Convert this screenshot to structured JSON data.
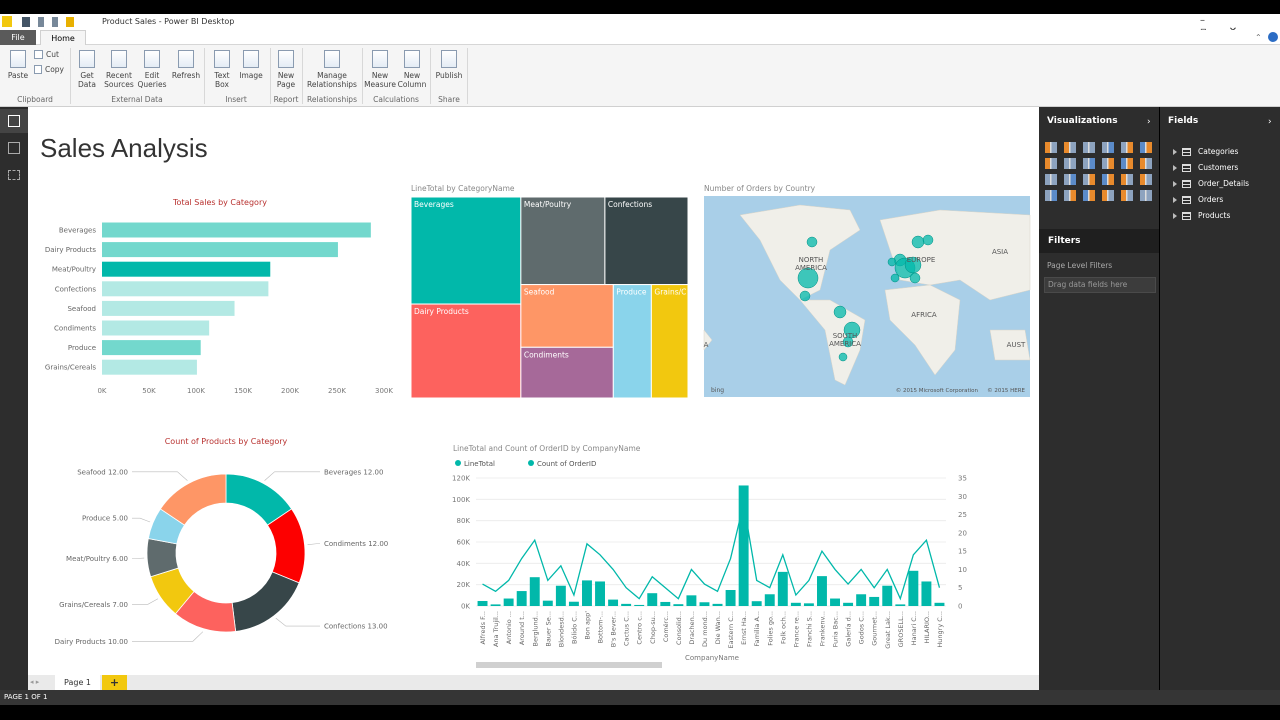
{
  "window": {
    "title": "Product Sales - Power BI Desktop"
  },
  "ribbon": {
    "tabs": [
      "File",
      "Home"
    ],
    "groups": [
      {
        "label": "Clipboard",
        "buttons": [
          "Paste",
          "Cut",
          "Copy"
        ]
      },
      {
        "label": "External Data",
        "buttons": [
          "Get Data",
          "Recent Sources",
          "Edit Queries",
          "Refresh"
        ]
      },
      {
        "label": "Insert",
        "buttons": [
          "Text Box",
          "Image"
        ]
      },
      {
        "label": "Report",
        "buttons": [
          "New Page"
        ]
      },
      {
        "label": "Relationships",
        "buttons": [
          "Manage Relationships"
        ]
      },
      {
        "label": "Calculations",
        "buttons": [
          "New Measure",
          "New Column"
        ]
      },
      {
        "label": "Share",
        "buttons": [
          "Publish"
        ]
      }
    ]
  },
  "report": {
    "title": "Sales Analysis"
  },
  "chart_data": [
    {
      "type": "bar",
      "orientation": "horizontal",
      "title": "Total Sales by Category",
      "categories": [
        "Beverages",
        "Dairy Products",
        "Meat/Poultry",
        "Confections",
        "Seafood",
        "Condiments",
        "Produce",
        "Grains/Cereals"
      ],
      "values": [
        286000,
        251000,
        179000,
        177000,
        141000,
        114000,
        105000,
        101000
      ],
      "colors": [
        "#73d8cd",
        "#73d8cd",
        "#01b8aa",
        "#b3e9e4",
        "#b3e9e4",
        "#b3e9e4",
        "#73d8cd",
        "#b3e9e4"
      ],
      "xlim": [
        0,
        300000
      ],
      "xticks": [
        {
          "value": 0,
          "label": "0K"
        },
        {
          "value": 50000,
          "label": "50K"
        },
        {
          "value": 100000,
          "label": "100K"
        },
        {
          "value": 150000,
          "label": "150K"
        },
        {
          "value": 200000,
          "label": "200K"
        },
        {
          "value": 250000,
          "label": "250K"
        },
        {
          "value": 300000,
          "label": "300K"
        }
      ],
      "grid": false
    },
    {
      "type": "treemap",
      "title": "LineTotal by CategoryName",
      "categories": [
        "Beverages",
        "Dairy Products",
        "Meat/Poultry",
        "Confections",
        "Seafood",
        "Condiments",
        "Produce",
        "Grains/Cereals"
      ],
      "values": [
        286000,
        251000,
        179000,
        177000,
        141000,
        114000,
        105000,
        101000
      ],
      "colors": [
        "#01b8aa",
        "#fd625e",
        "#5f6b6d",
        "#374649",
        "#fe9666",
        "#a66999",
        "#8ad4eb",
        "#f2c80f"
      ]
    },
    {
      "type": "map",
      "title": "Number of Orders by Country",
      "region_labels": [
        "NORTH AMERICA",
        "EUROPE",
        "ASIA",
        "AFRICA",
        "SOUTH AMERICA",
        "A",
        "AUST"
      ],
      "credits": [
        "bing",
        "© 2015 Microsoft Corporation",
        "© 2015 HERE"
      ]
    },
    {
      "type": "donut",
      "title": "Count of Products by Category",
      "categories": [
        "Beverages",
        "Condiments",
        "Confections",
        "Dairy Products",
        "Grains/Cereals",
        "Meat/Poultry",
        "Produce",
        "Seafood"
      ],
      "values": [
        12,
        12,
        13,
        10,
        7,
        6,
        5,
        12
      ],
      "value_labels": [
        "12.00",
        "12.00",
        "13.00",
        "10.00",
        "7.00",
        "6.00",
        "5.00",
        "12.00"
      ],
      "colors": [
        "#01b8aa",
        "#fd0000",
        "#374649",
        "#fd625e",
        "#f2c80f",
        "#5f6b6d",
        "#8ad4eb",
        "#fe9666"
      ]
    },
    {
      "type": "combo",
      "title": "LineTotal and Count of OrderID by CompanyName",
      "xlabel": "CompanyName",
      "categories": [
        "Alfreds F...",
        "Ana Trujil...",
        "Antonio ...",
        "Around t...",
        "Berglund...",
        "Bauer Se...",
        "Blondesd...",
        "Bólido C...",
        "Bon app'",
        "Bottom-...",
        "B's Bever...",
        "Cactus C...",
        "Centro c...",
        "Chop-su...",
        "Comérc...",
        "Consolid...",
        "Drachen...",
        "Du mond...",
        "Die Wan...",
        "Eastern C...",
        "Ernst Ha...",
        "Familia A...",
        "Folies go...",
        "Folk och...",
        "France re...",
        "Franchi S...",
        "Frankenv...",
        "Furia Bac...",
        "Galería d...",
        "Godos C...",
        "Gourmet...",
        "Great Lak...",
        "GROSELL...",
        "Hanari C...",
        "HILARIO...",
        "Hungry C..."
      ],
      "series": [
        {
          "name": "LineTotal",
          "type": "bar",
          "color": "#01b8aa",
          "values": [
            4700,
            1500,
            7000,
            14000,
            27000,
            5000,
            19000,
            4000,
            24000,
            23000,
            6000,
            2000,
            1000,
            12000,
            3800,
            1700,
            10000,
            3500,
            2000,
            15000,
            113000,
            4500,
            11000,
            32000,
            3000,
            2500,
            28000,
            7000,
            3000,
            11000,
            8500,
            19000,
            1500,
            33000,
            23000,
            3000
          ]
        },
        {
          "name": "Count of OrderID",
          "type": "line",
          "axis": "y2",
          "color": "#01b8aa",
          "values": [
            6,
            4,
            7,
            13,
            18,
            7,
            11,
            3,
            17,
            14,
            10,
            5,
            2,
            8,
            5,
            2,
            10,
            6,
            4,
            13,
            28,
            7,
            5,
            14,
            3,
            7,
            15,
            10,
            6,
            10,
            5,
            10,
            2,
            14,
            18,
            5
          ]
        }
      ],
      "ylim": [
        0,
        120000
      ],
      "yticks": [
        {
          "value": 0,
          "label": "0K"
        },
        {
          "value": 20000,
          "label": "20K"
        },
        {
          "value": 40000,
          "label": "40K"
        },
        {
          "value": 60000,
          "label": "60K"
        },
        {
          "value": 80000,
          "label": "80K"
        },
        {
          "value": 100000,
          "label": "100K"
        },
        {
          "value": 120000,
          "label": "120K"
        }
      ],
      "y2lim": [
        0,
        35
      ],
      "y2ticks": [
        0,
        5,
        10,
        15,
        20,
        25,
        30,
        35
      ],
      "grid": true,
      "legend": "top-left"
    }
  ],
  "panes": {
    "visualizations": {
      "title": "Visualizations"
    },
    "filters": {
      "title": "Filters",
      "items": [
        "Page Level Filters",
        "Drag data fields here"
      ]
    },
    "fields": {
      "title": "Fields",
      "tables": [
        "Categories",
        "Customers",
        "Order_Details",
        "Orders",
        "Products"
      ]
    }
  },
  "pages": {
    "tabs": [
      "Page 1"
    ],
    "add": "+",
    "status": "PAGE 1 OF 1"
  }
}
